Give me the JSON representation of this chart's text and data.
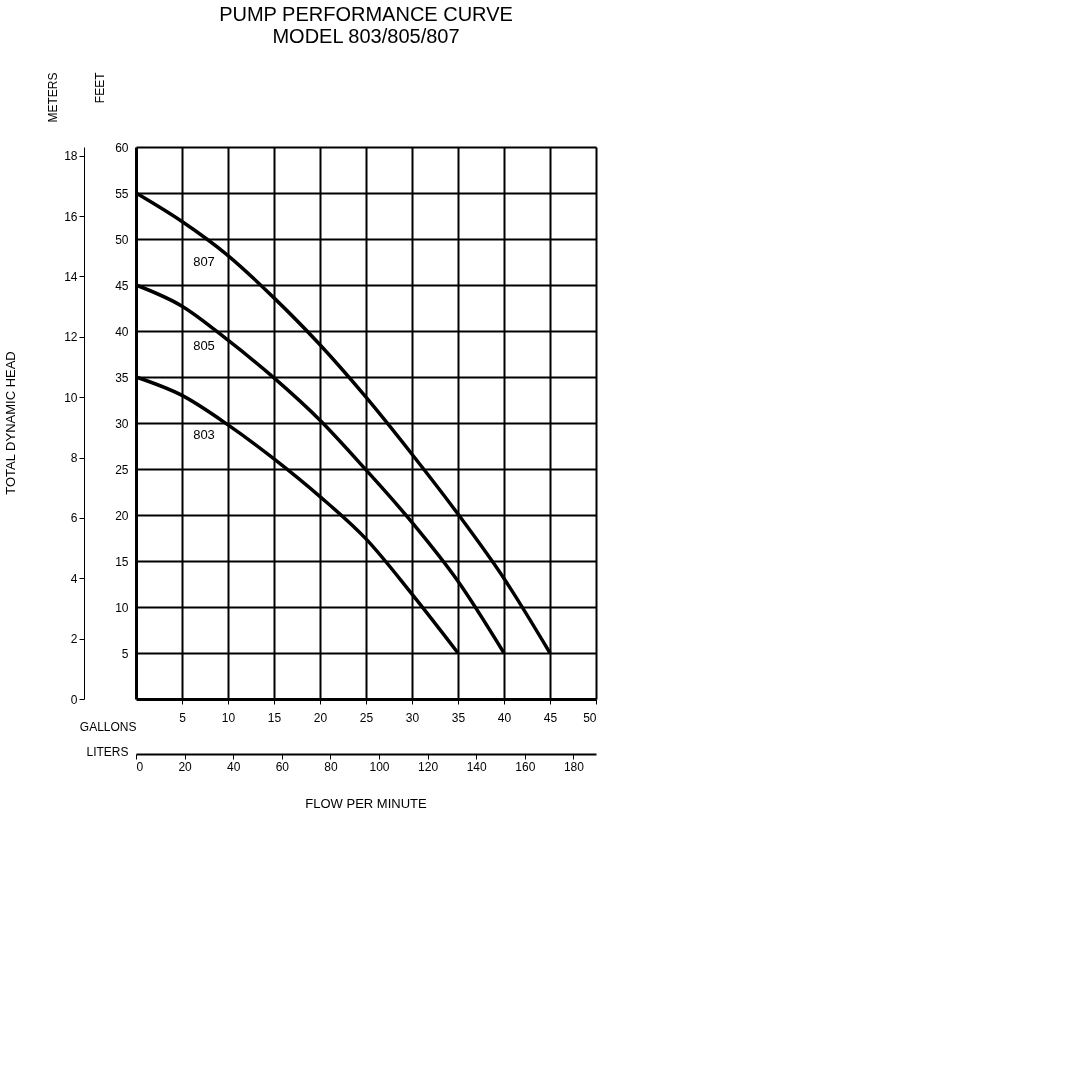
{
  "chart_data": {
    "type": "line",
    "title": [
      "PUMP PERFORMANCE CURVE",
      "MODEL 803/805/807"
    ],
    "xlabel": "GALLONS",
    "x2label": "LITERS",
    "ylabel": "FEET",
    "y2label": "METERS",
    "annotations": [
      "TOTAL DYNAMIC HEAD",
      "FLOW PER MINUTE"
    ],
    "xlim": [
      0,
      50
    ],
    "xticks": [
      5,
      10,
      15,
      20,
      25,
      30,
      35,
      40,
      45,
      50
    ],
    "x2lim": [
      0,
      189.3
    ],
    "x2ticks": [
      0,
      20,
      40,
      60,
      80,
      100,
      120,
      140,
      160,
      180
    ],
    "ylim": [
      0,
      60
    ],
    "yticks": [
      5,
      10,
      15,
      20,
      25,
      30,
      35,
      40,
      45,
      50,
      55,
      60
    ],
    "y2lim": [
      0,
      18.29
    ],
    "y2ticks": [
      0,
      2,
      4,
      6,
      8,
      10,
      12,
      14,
      16,
      18
    ],
    "grid": true,
    "legend": false,
    "marker": "none",
    "line_style": "solid",
    "x": [
      0,
      5,
      10,
      15,
      20,
      25,
      30,
      35,
      40,
      45
    ],
    "series": [
      {
        "name": "807",
        "color": "#000000",
        "values": [
          55,
          51.9,
          48.2,
          43.6,
          38.5,
          32.8,
          26.6,
          20.1,
          13.1,
          5
        ]
      },
      {
        "name": "805",
        "color": "#000000",
        "values": [
          45,
          42.7,
          39,
          34.9,
          30.3,
          24.9,
          19.2,
          12.8,
          5,
          null
        ]
      },
      {
        "name": "803",
        "color": "#000000",
        "values": [
          35,
          33,
          29.8,
          26.1,
          22,
          17.4,
          11.4,
          5,
          null,
          null
        ]
      }
    ]
  }
}
